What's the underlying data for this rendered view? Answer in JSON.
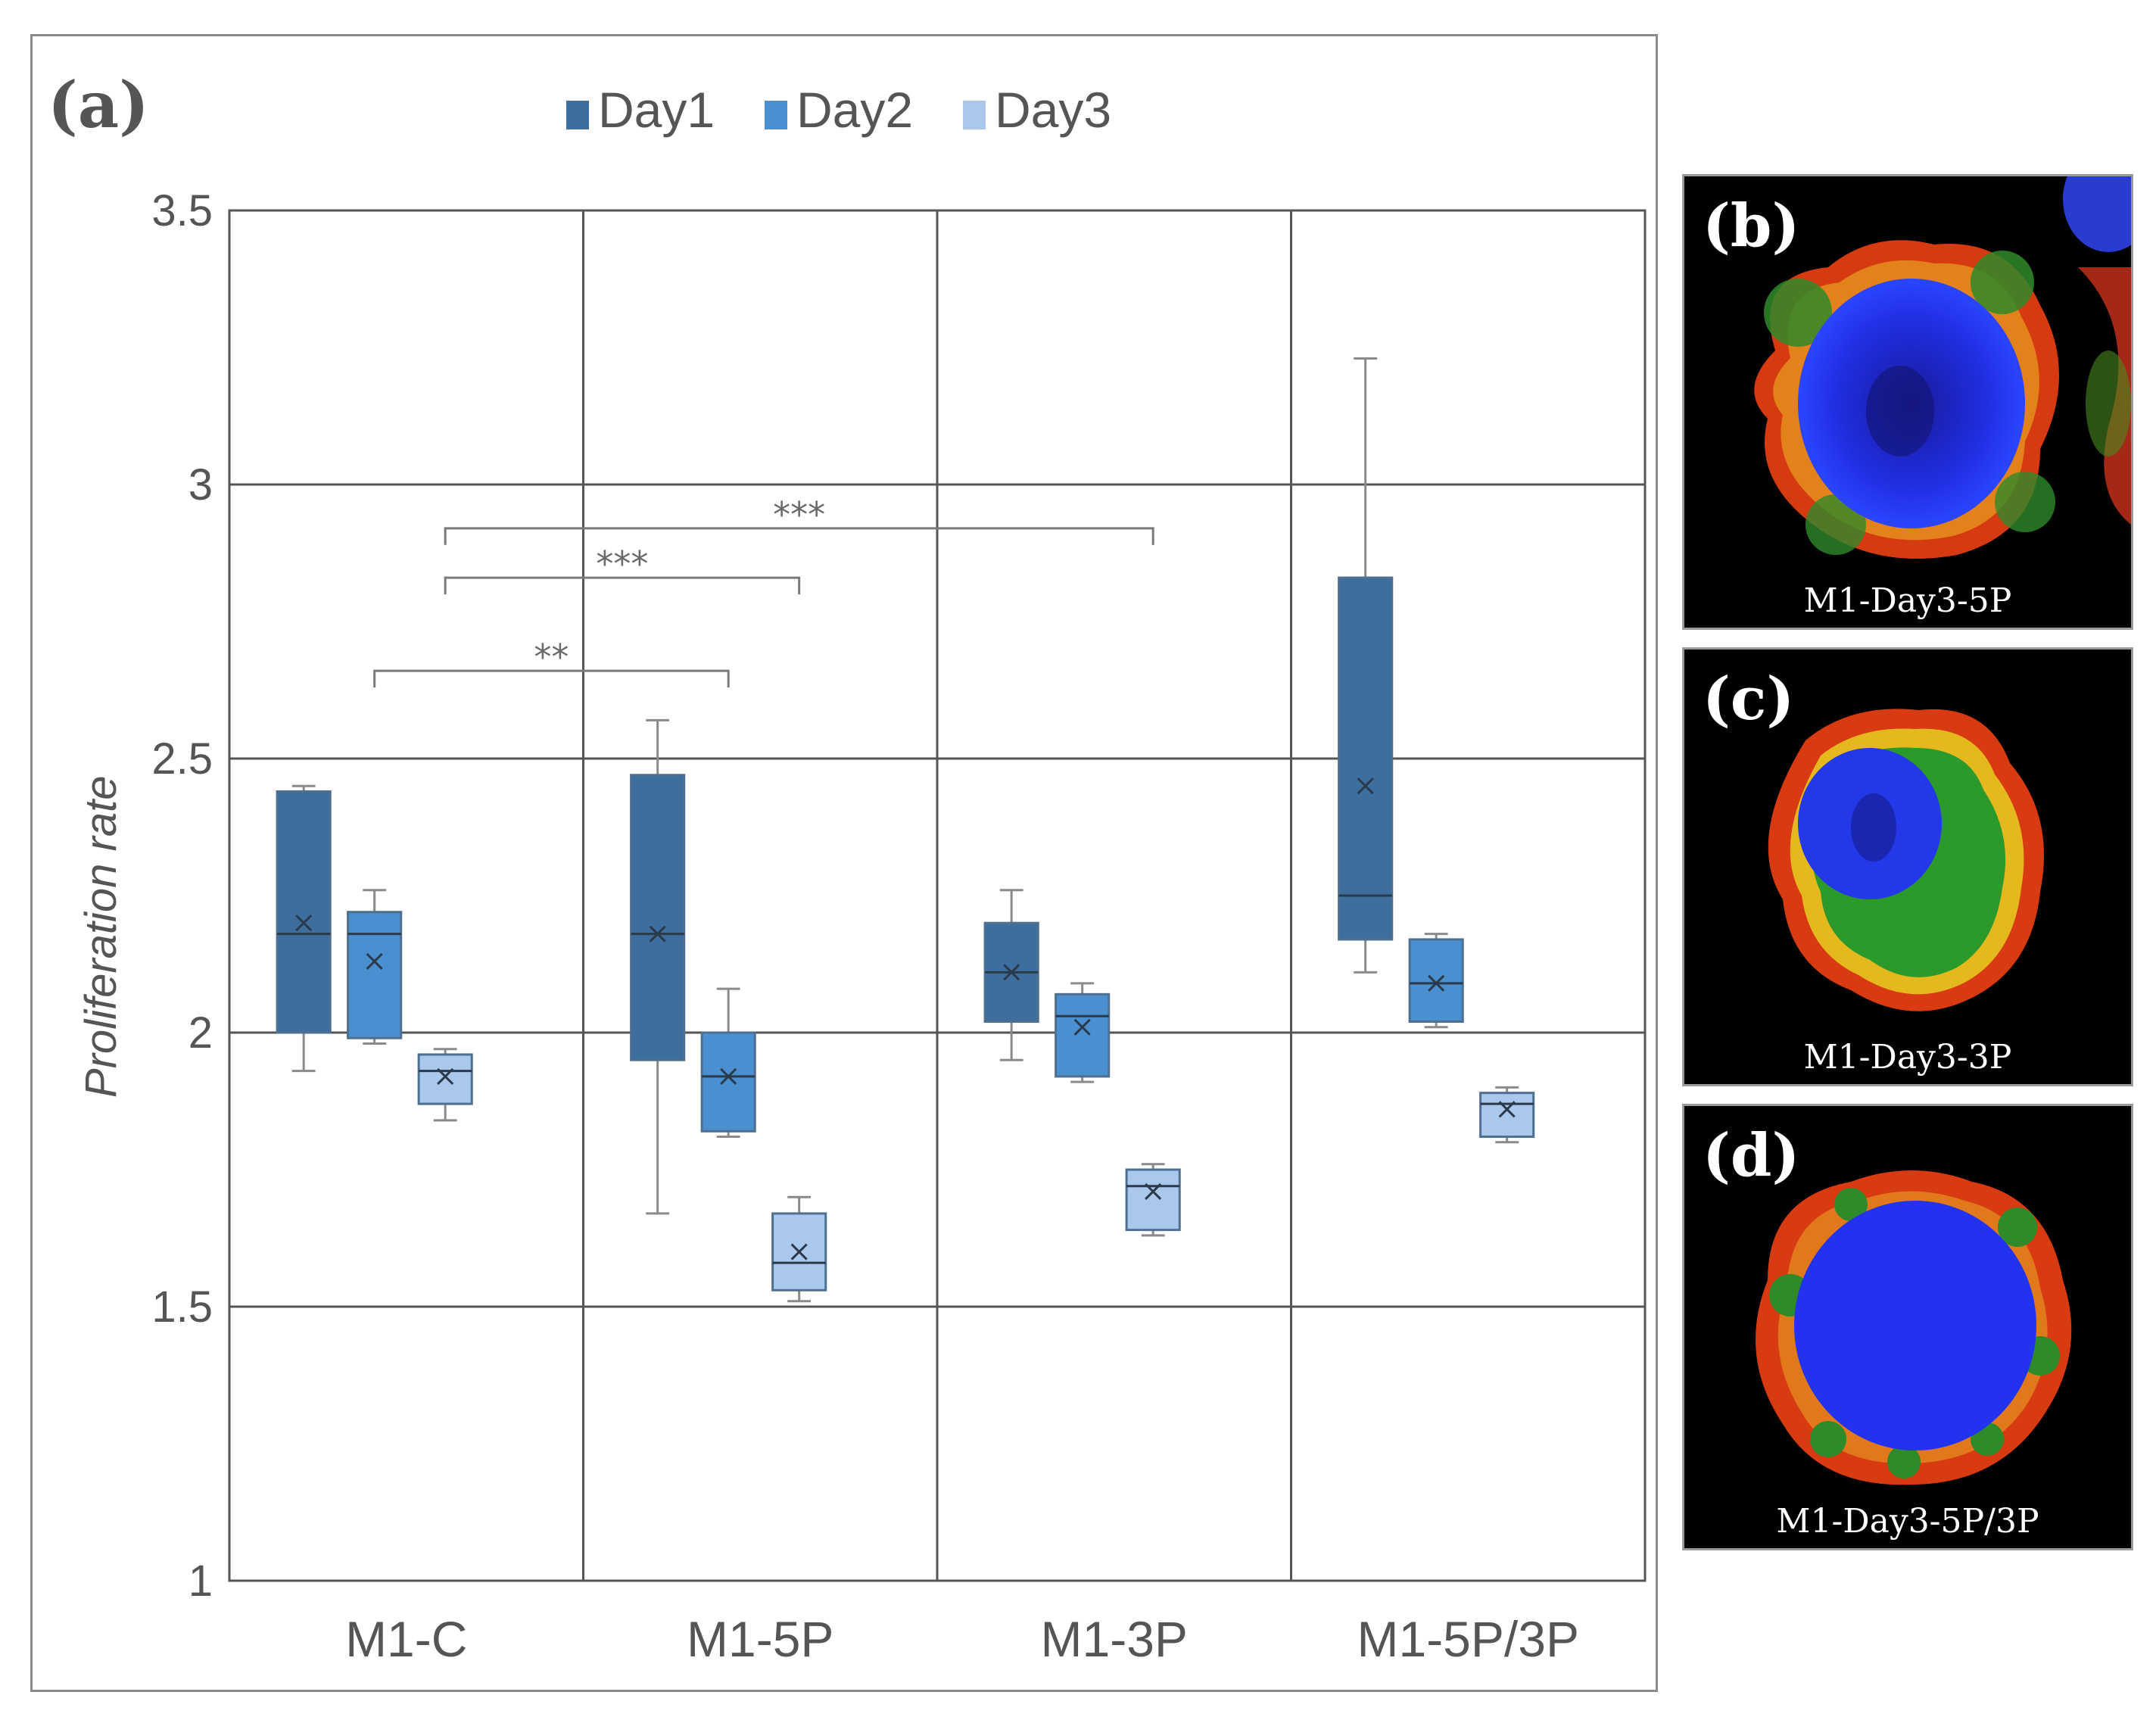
{
  "panel_a_label": "(a)",
  "colors": {
    "day1": "#3e6e9e",
    "day2": "#4a90d0",
    "day3": "#a9c8ec",
    "grid": "#555555",
    "text": "#555555"
  },
  "chart_data": {
    "type": "box",
    "title": "",
    "xlabel": "",
    "ylabel": "Proliferation rate",
    "ylim": [
      1,
      3.5
    ],
    "yticks": [
      1,
      1.5,
      2,
      2.5,
      3,
      3.5
    ],
    "ytick_labels": [
      "1",
      "1.5",
      "2",
      "2.5",
      "3",
      "3.5"
    ],
    "categories": [
      "M1-C",
      "M1-5P",
      "M1-3P",
      "M1-5P/3P"
    ],
    "legend_position": "top",
    "series": [
      {
        "name": "Day1",
        "color": "#3e6e9e",
        "boxes": [
          {
            "min": 1.93,
            "q1": 2.0,
            "median": 2.18,
            "q3": 2.44,
            "max": 2.45,
            "mean": 2.2
          },
          {
            "min": 1.67,
            "q1": 1.95,
            "median": 2.18,
            "q3": 2.47,
            "max": 2.57,
            "mean": 2.18
          },
          {
            "min": 1.95,
            "q1": 2.02,
            "median": 2.11,
            "q3": 2.2,
            "max": 2.26,
            "mean": 2.11
          },
          {
            "min": 2.11,
            "q1": 2.17,
            "median": 2.25,
            "q3": 2.83,
            "max": 3.23,
            "mean": 2.45
          }
        ]
      },
      {
        "name": "Day2",
        "color": "#4a90d0",
        "boxes": [
          {
            "min": 1.98,
            "q1": 1.99,
            "median": 2.18,
            "q3": 2.22,
            "max": 2.26,
            "mean": 2.13
          },
          {
            "min": 1.81,
            "q1": 1.82,
            "median": 1.92,
            "q3": 2.0,
            "max": 2.08,
            "mean": 1.92
          },
          {
            "min": 1.91,
            "q1": 1.92,
            "median": 2.03,
            "q3": 2.07,
            "max": 2.09,
            "mean": 2.01
          },
          {
            "min": 2.01,
            "q1": 2.02,
            "median": 2.09,
            "q3": 2.17,
            "max": 2.18,
            "mean": 2.09
          }
        ]
      },
      {
        "name": "Day3",
        "color": "#a9c8ec",
        "boxes": [
          {
            "min": 1.84,
            "q1": 1.87,
            "median": 1.93,
            "q3": 1.96,
            "max": 1.97,
            "mean": 1.92
          },
          {
            "min": 1.51,
            "q1": 1.53,
            "median": 1.58,
            "q3": 1.67,
            "max": 1.7,
            "mean": 1.6
          },
          {
            "min": 1.63,
            "q1": 1.64,
            "median": 1.72,
            "q3": 1.75,
            "max": 1.76,
            "mean": 1.71
          },
          {
            "min": 1.8,
            "q1": 1.81,
            "median": 1.87,
            "q3": 1.89,
            "max": 1.9,
            "mean": 1.86
          }
        ]
      }
    ],
    "significance": [
      {
        "from": {
          "category": 0,
          "series": 1
        },
        "to": {
          "category": 1,
          "series": 1
        },
        "y": 2.66,
        "label": "**"
      },
      {
        "from": {
          "category": 0,
          "series": 2
        },
        "to": {
          "category": 1,
          "series": 2
        },
        "y": 2.83,
        "label": "***"
      },
      {
        "from": {
          "category": 0,
          "series": 2
        },
        "to": {
          "category": 2,
          "series": 2
        },
        "y": 2.92,
        "label": "***"
      }
    ]
  },
  "micrographs": [
    {
      "tag": "(b)",
      "caption": "M1-Day3-5P"
    },
    {
      "tag": "(c)",
      "caption": "M1-Day3-3P"
    },
    {
      "tag": "(d)",
      "caption": "M1-Day3-5P/3P"
    }
  ]
}
